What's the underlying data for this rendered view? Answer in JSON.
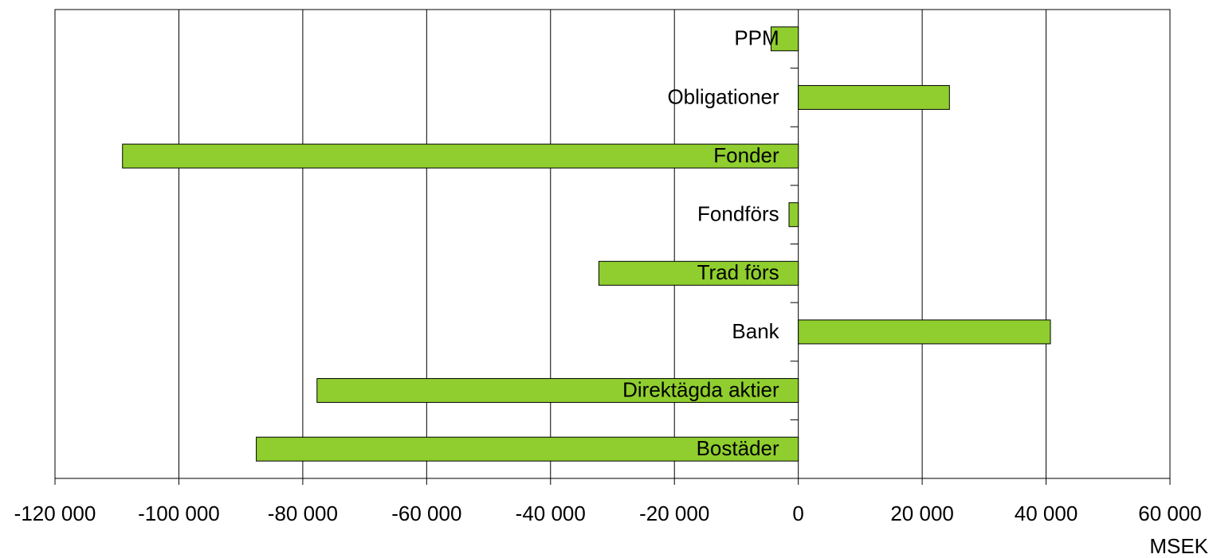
{
  "chart_data": {
    "type": "barh",
    "categories": [
      "PPM",
      "Obligationer",
      "Fonder",
      "Fondförs",
      "Trad förs",
      "Bank",
      "Direktägda aktier",
      "Bostäder"
    ],
    "values": [
      -4400,
      24400,
      -109100,
      -1500,
      -32200,
      40700,
      -77700,
      -87500
    ],
    "color": "#8fce2e",
    "xlabel": "MSEK",
    "xlim": [
      -120000,
      60000
    ],
    "xticks": [
      {
        "value": -120000,
        "label": "-120 000"
      },
      {
        "value": -100000,
        "label": "-100 000"
      },
      {
        "value": -80000,
        "label": "-80 000"
      },
      {
        "value": -60000,
        "label": "-60 000"
      },
      {
        "value": -40000,
        "label": "-40 000"
      },
      {
        "value": -20000,
        "label": "-20 000"
      },
      0,
      {
        "value": 20000,
        "label": "20 000"
      },
      {
        "value": 40000,
        "label": "40 000"
      },
      {
        "value": 60000,
        "label": "60 000"
      }
    ],
    "grid": true
  }
}
